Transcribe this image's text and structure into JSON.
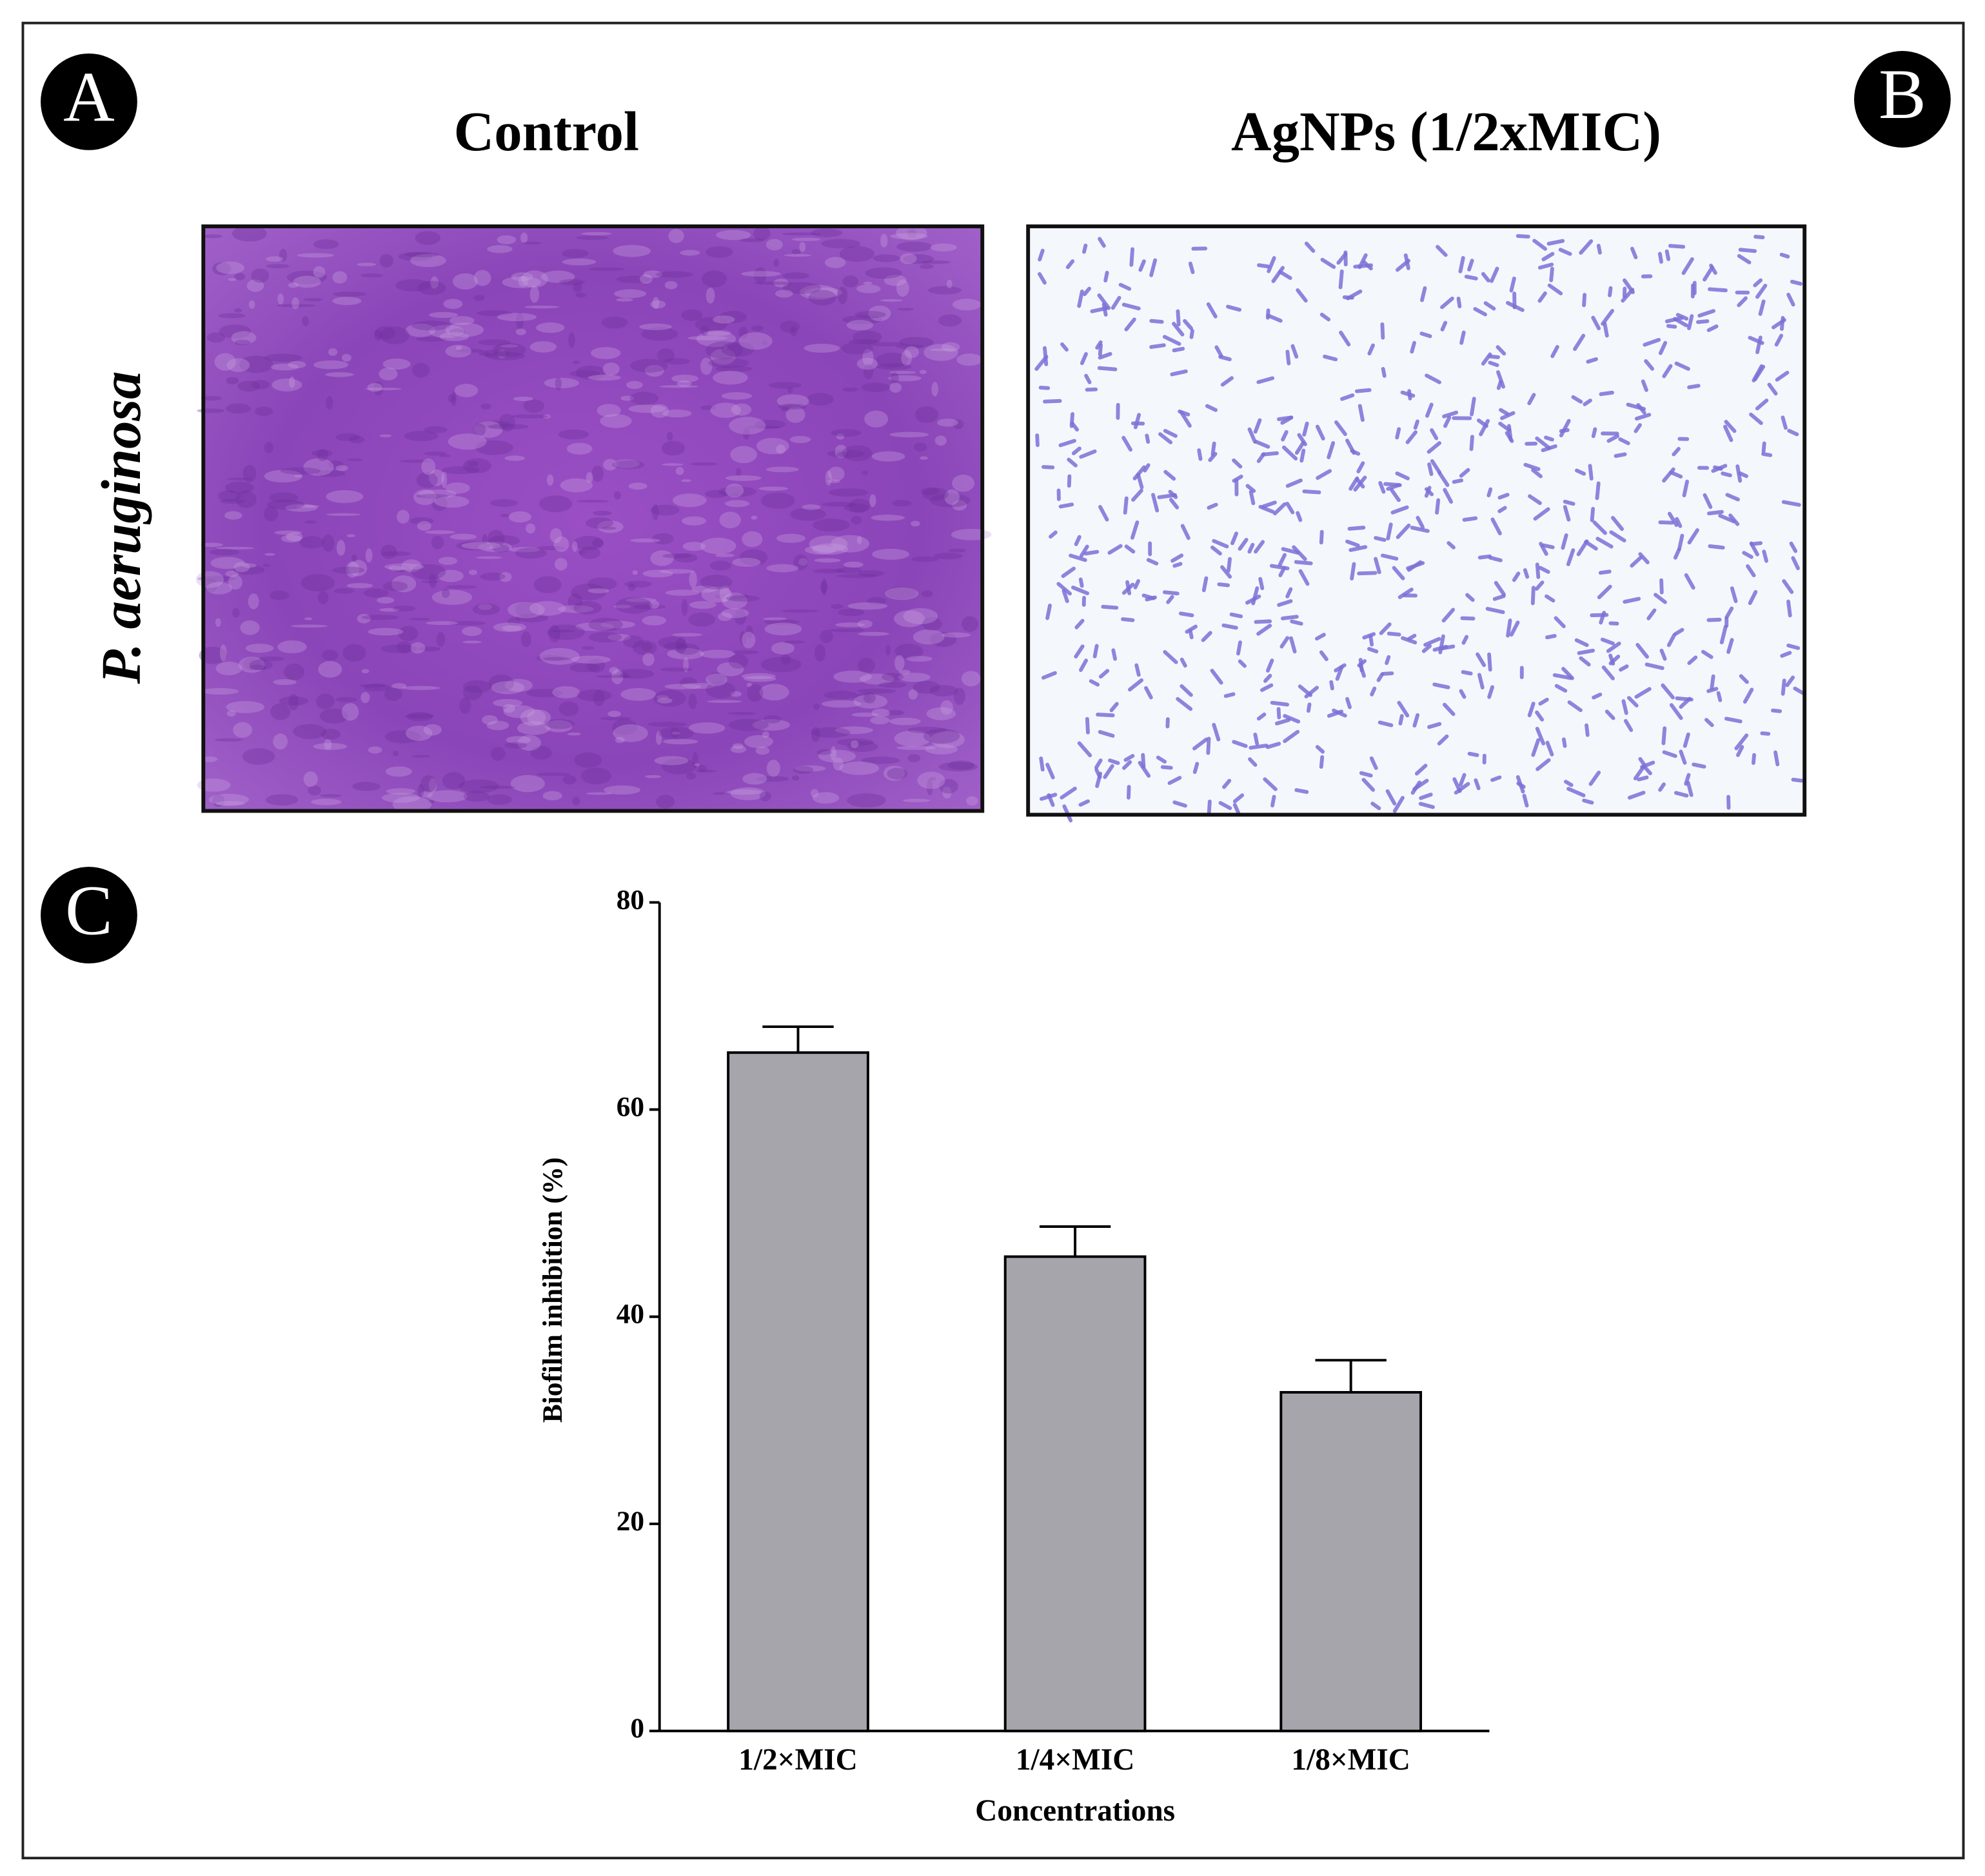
{
  "panels": {
    "a": {
      "label": "A",
      "title": "Control"
    },
    "b": {
      "label": "B",
      "title": "AgNPs (1/2xMIC)"
    },
    "c": {
      "label": "C"
    },
    "row_label": "P. aeruginosa"
  },
  "chart_data": {
    "type": "bar",
    "y_label": "Biofilm inhibition (%)",
    "x_label": "Concentrations",
    "categories": [
      "1/2×MIC",
      "1/4×MIC",
      "1/8×MIC"
    ],
    "values": [
      65.5,
      45.8,
      32.7
    ],
    "errors": [
      2.5,
      2.9,
      3.1
    ],
    "color": "#a6a5ab",
    "ylim": [
      0,
      80
    ],
    "yticks": [
      0,
      20,
      40,
      60,
      80
    ]
  }
}
